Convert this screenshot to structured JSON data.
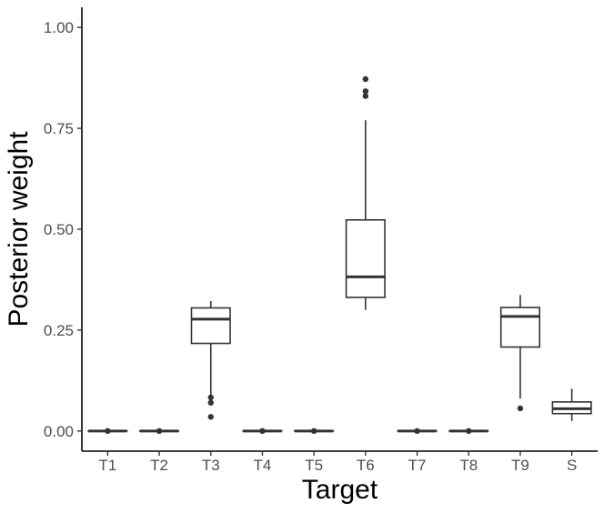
{
  "chart_data": {
    "type": "box",
    "title": "",
    "xlabel": "Target",
    "ylabel": "Posterior weight",
    "ylim": [
      -0.05,
      1.05
    ],
    "yticks": [
      0.0,
      0.25,
      0.5,
      0.75,
      1.0
    ],
    "ytick_labels": [
      "0.00",
      "0.25",
      "0.50",
      "0.75",
      "1.00"
    ],
    "grid": false,
    "legend": "none",
    "categories": [
      "T1",
      "T2",
      "T3",
      "T4",
      "T5",
      "T6",
      "T7",
      "T8",
      "T9",
      "S"
    ],
    "boxes": [
      {
        "category": "T1",
        "whisker_low": 0.0,
        "q1": 0.0,
        "median": 0.0,
        "q3": 0.0,
        "whisker_high": 0.0,
        "outliers": [
          0.0
        ]
      },
      {
        "category": "T2",
        "whisker_low": 0.0,
        "q1": 0.0,
        "median": 0.0,
        "q3": 0.0,
        "whisker_high": 0.0,
        "outliers": [
          0.0
        ]
      },
      {
        "category": "T3",
        "whisker_low": 0.09,
        "q1": 0.217,
        "median": 0.277,
        "q3": 0.305,
        "whisker_high": 0.322,
        "outliers": [
          0.083,
          0.07,
          0.035
        ]
      },
      {
        "category": "T4",
        "whisker_low": 0.0,
        "q1": 0.0,
        "median": 0.0,
        "q3": 0.0,
        "whisker_high": 0.0,
        "outliers": [
          0.0
        ]
      },
      {
        "category": "T5",
        "whisker_low": 0.0,
        "q1": 0.0,
        "median": 0.0,
        "q3": 0.0,
        "whisker_high": 0.0,
        "outliers": [
          0.0
        ]
      },
      {
        "category": "T6",
        "whisker_low": 0.3,
        "q1": 0.331,
        "median": 0.382,
        "q3": 0.523,
        "whisker_high": 0.77,
        "outliers": [
          0.872,
          0.842,
          0.83
        ]
      },
      {
        "category": "T7",
        "whisker_low": 0.0,
        "q1": 0.0,
        "median": 0.0,
        "q3": 0.0,
        "whisker_high": 0.0,
        "outliers": [
          0.0
        ]
      },
      {
        "category": "T8",
        "whisker_low": 0.0,
        "q1": 0.0,
        "median": 0.0,
        "q3": 0.0,
        "whisker_high": 0.0,
        "outliers": [
          0.0
        ]
      },
      {
        "category": "T9",
        "whisker_low": 0.08,
        "q1": 0.208,
        "median": 0.284,
        "q3": 0.306,
        "whisker_high": 0.337,
        "outliers": [
          0.056
        ]
      },
      {
        "category": "S",
        "whisker_low": 0.025,
        "q1": 0.043,
        "median": 0.055,
        "q3": 0.072,
        "whisker_high": 0.105,
        "outliers": []
      }
    ],
    "colors": {
      "box_line": "#333333",
      "box_fill": "#ffffff",
      "axis_line": "#000000",
      "tick_label": "#4d4d4d",
      "axis_title": "#000000"
    }
  }
}
